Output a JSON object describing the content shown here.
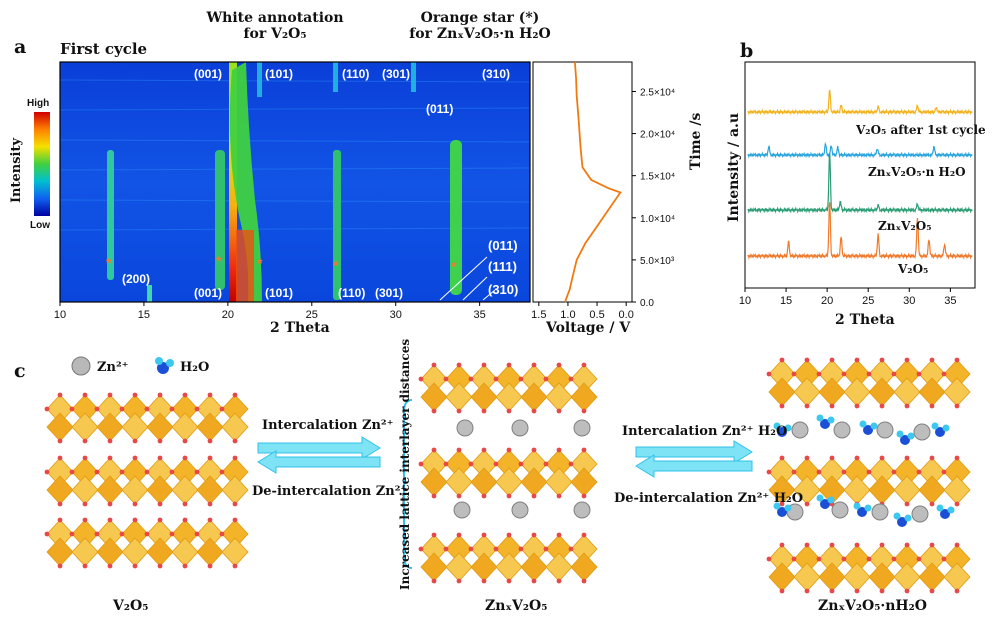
{
  "panel_a": {
    "letter": "a",
    "cycle_label": "First cycle",
    "header_white_1": "White annotation",
    "header_white_2": "for V₂O₅",
    "header_orange_1": "Orange star (*)",
    "header_orange_2": "for ZnₓV₂O₅·n H₂O",
    "colorbar_high": "High",
    "colorbar_low": "Low",
    "colorbar_title": "Intensity",
    "xlabel": "2 Theta",
    "voltage_label": "Voltage / V",
    "time_label": "Time /s",
    "top_peaks": [
      "(001)",
      "(101)",
      "(110)",
      "(301)",
      "(310)",
      "(011)"
    ],
    "bottom_peaks": [
      "(200)",
      "(001)",
      "(101)",
      "(110)",
      "(301)"
    ],
    "right_peaks": [
      "(011)",
      "(111)",
      "(310)"
    ]
  },
  "panel_b": {
    "letter": "b",
    "ylabel": "Intensity / a.u",
    "xlabel": "2 Theta",
    "series_labels": [
      "V₂O₅ after 1st cycle",
      "ZnₓV₂O₅·n H₂O",
      "ZnₓV₂O₅",
      "V₂O₅"
    ]
  },
  "panel_c": {
    "letter": "c",
    "legend_zn": "Zn²⁺",
    "legend_h2o": "H₂O",
    "arrow_left_top": "Intercalation Zn²⁺",
    "arrow_left_bottom": "De-intercalation Zn²⁺",
    "vertical_note": "Increased lattice interlayer distances",
    "arrow_right_top": "Intercalation Zn²⁺ H₂O",
    "arrow_right_bottom": "De-intercalation Zn²⁺ H₂O",
    "caption_1": "V₂O₅",
    "caption_2": "ZnₓV₂O₅",
    "caption_3": "ZnₓV₂O₅·nH₂O"
  },
  "chart_data": [
    {
      "type": "heatmap",
      "xlabel": "2 Theta",
      "x_ticks": [
        10,
        15,
        20,
        25,
        30,
        35
      ],
      "xlim": [
        10,
        38
      ],
      "colorbar": [
        "High",
        "Low"
      ],
      "peak_positions_2theta": [
        12.9,
        15.2,
        19.4,
        20.3,
        21.6,
        26.1,
        31.0,
        33.2
      ]
    },
    {
      "type": "line",
      "xlabel": "Voltage / V",
      "ylabel": "Time /s",
      "x_ticks": [
        1.5,
        1.0,
        0.5,
        0.0
      ],
      "xlim": [
        1.6,
        -0.1
      ],
      "y_ticks": [
        "0.0",
        "5.0×10³",
        "1.0×10⁴",
        "1.5×10⁴",
        "2.0×10⁴",
        "2.5×10⁴"
      ],
      "y_tick_values": [
        0,
        5000,
        10000,
        15000,
        20000,
        25000
      ],
      "ylim": [
        0,
        28500
      ],
      "x": [
        1.05,
        0.97,
        0.92,
        0.85,
        0.7,
        0.5,
        0.3,
        0.1,
        0.3,
        0.6,
        0.75,
        0.78,
        0.8,
        0.82,
        0.85,
        0.86,
        0.88
      ],
      "y": [
        0,
        1500,
        3000,
        5000,
        7000,
        9000,
        11000,
        13000,
        13500,
        14500,
        16000,
        18000,
        20000,
        22000,
        24500,
        26500,
        28500
      ]
    },
    {
      "type": "line",
      "xlabel": "2 Theta",
      "ylabel": "Intensity / a.u",
      "x_ticks": [
        10,
        15,
        20,
        25,
        30,
        35
      ],
      "xlim": [
        10,
        38
      ],
      "series": [
        {
          "name": "V₂O₅ after 1st cycle",
          "color": "#f2b21b",
          "peaks": [
            [
              20.3,
              1.0
            ],
            [
              21.7,
              0.3
            ],
            [
              26.2,
              0.25
            ],
            [
              31.0,
              0.3
            ],
            [
              33.3,
              0.2
            ]
          ]
        },
        {
          "name": "ZnₓV₂O₅·n H₂O",
          "color": "#27a3dd",
          "peaks": [
            [
              12.9,
              0.4
            ],
            [
              19.8,
              0.5
            ],
            [
              20.5,
              0.45
            ],
            [
              21.3,
              0.35
            ],
            [
              26.1,
              0.3
            ],
            [
              33.0,
              0.4
            ]
          ]
        },
        {
          "name": "ZnₓV₂O₅",
          "color": "#2a9d74",
          "peaks": [
            [
              20.3,
              2.4
            ],
            [
              21.6,
              0.35
            ],
            [
              26.2,
              0.2
            ],
            [
              31.0,
              0.25
            ]
          ]
        },
        {
          "name": "V₂O₅",
          "color": "#f07a2c",
          "peaks": [
            [
              15.3,
              0.6
            ],
            [
              20.3,
              2.3
            ],
            [
              21.7,
              0.8
            ],
            [
              26.2,
              0.9
            ],
            [
              31.0,
              1.6
            ],
            [
              32.4,
              0.7
            ],
            [
              34.3,
              0.5
            ]
          ]
        }
      ]
    }
  ]
}
